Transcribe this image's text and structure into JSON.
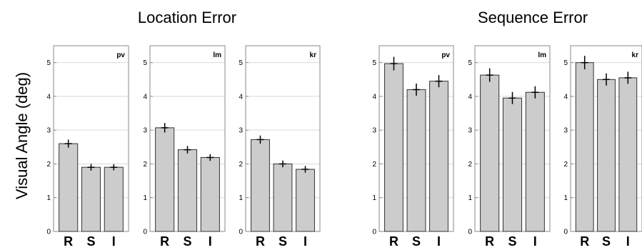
{
  "figure": {
    "ylabel": "Visual Angle (deg)",
    "groups": [
      {
        "title": "Location Error"
      },
      {
        "title": "Sequence Error"
      }
    ]
  },
  "chart_data": [
    {
      "type": "bar",
      "group": "Location Error",
      "subject": "pv",
      "categories": [
        "R",
        "S",
        "I"
      ],
      "values": [
        2.6,
        1.9,
        1.9
      ],
      "error": [
        0.12,
        0.1,
        0.09
      ],
      "ylim": [
        0,
        5.5
      ],
      "yticks": [
        0,
        1,
        2,
        3,
        4,
        5
      ],
      "grid": true
    },
    {
      "type": "bar",
      "group": "Location Error",
      "subject": "lm",
      "categories": [
        "R",
        "S",
        "I"
      ],
      "values": [
        3.07,
        2.42,
        2.19
      ],
      "error": [
        0.14,
        0.11,
        0.1
      ],
      "ylim": [
        0,
        5.5
      ],
      "yticks": [
        0,
        1,
        2,
        3,
        4,
        5
      ],
      "grid": true
    },
    {
      "type": "bar",
      "group": "Location Error",
      "subject": "kr",
      "categories": [
        "R",
        "S",
        "I"
      ],
      "values": [
        2.72,
        2.0,
        1.84
      ],
      "error": [
        0.12,
        0.1,
        0.1
      ],
      "ylim": [
        0,
        5.5
      ],
      "yticks": [
        0,
        1,
        2,
        3,
        4,
        5
      ],
      "grid": true
    },
    {
      "type": "bar",
      "group": "Sequence Error",
      "subject": "pv",
      "categories": [
        "R",
        "S",
        "I"
      ],
      "values": [
        4.97,
        4.2,
        4.45
      ],
      "error": [
        0.2,
        0.18,
        0.18
      ],
      "ylim": [
        0,
        5.5
      ],
      "yticks": [
        0,
        1,
        2,
        3,
        4,
        5
      ],
      "grid": true
    },
    {
      "type": "bar",
      "group": "Sequence Error",
      "subject": "lm",
      "categories": [
        "R",
        "S",
        "I"
      ],
      "values": [
        4.63,
        3.95,
        4.12
      ],
      "error": [
        0.2,
        0.18,
        0.18
      ],
      "ylim": [
        0,
        5.5
      ],
      "yticks": [
        0,
        1,
        2,
        3,
        4,
        5
      ],
      "grid": true
    },
    {
      "type": "bar",
      "group": "Sequence Error",
      "subject": "kr",
      "categories": [
        "R",
        "S",
        "I"
      ],
      "values": [
        5.0,
        4.5,
        4.55
      ],
      "error": [
        0.2,
        0.18,
        0.18
      ],
      "ylim": [
        0,
        5.5
      ],
      "yticks": [
        0,
        1,
        2,
        3,
        4,
        5
      ],
      "grid": true
    }
  ],
  "colors": {
    "bar": "#cccccc",
    "bar_edge": "#333333",
    "grid": "#d9d9d9",
    "axis": "#888888",
    "errorbar": "#000000"
  }
}
